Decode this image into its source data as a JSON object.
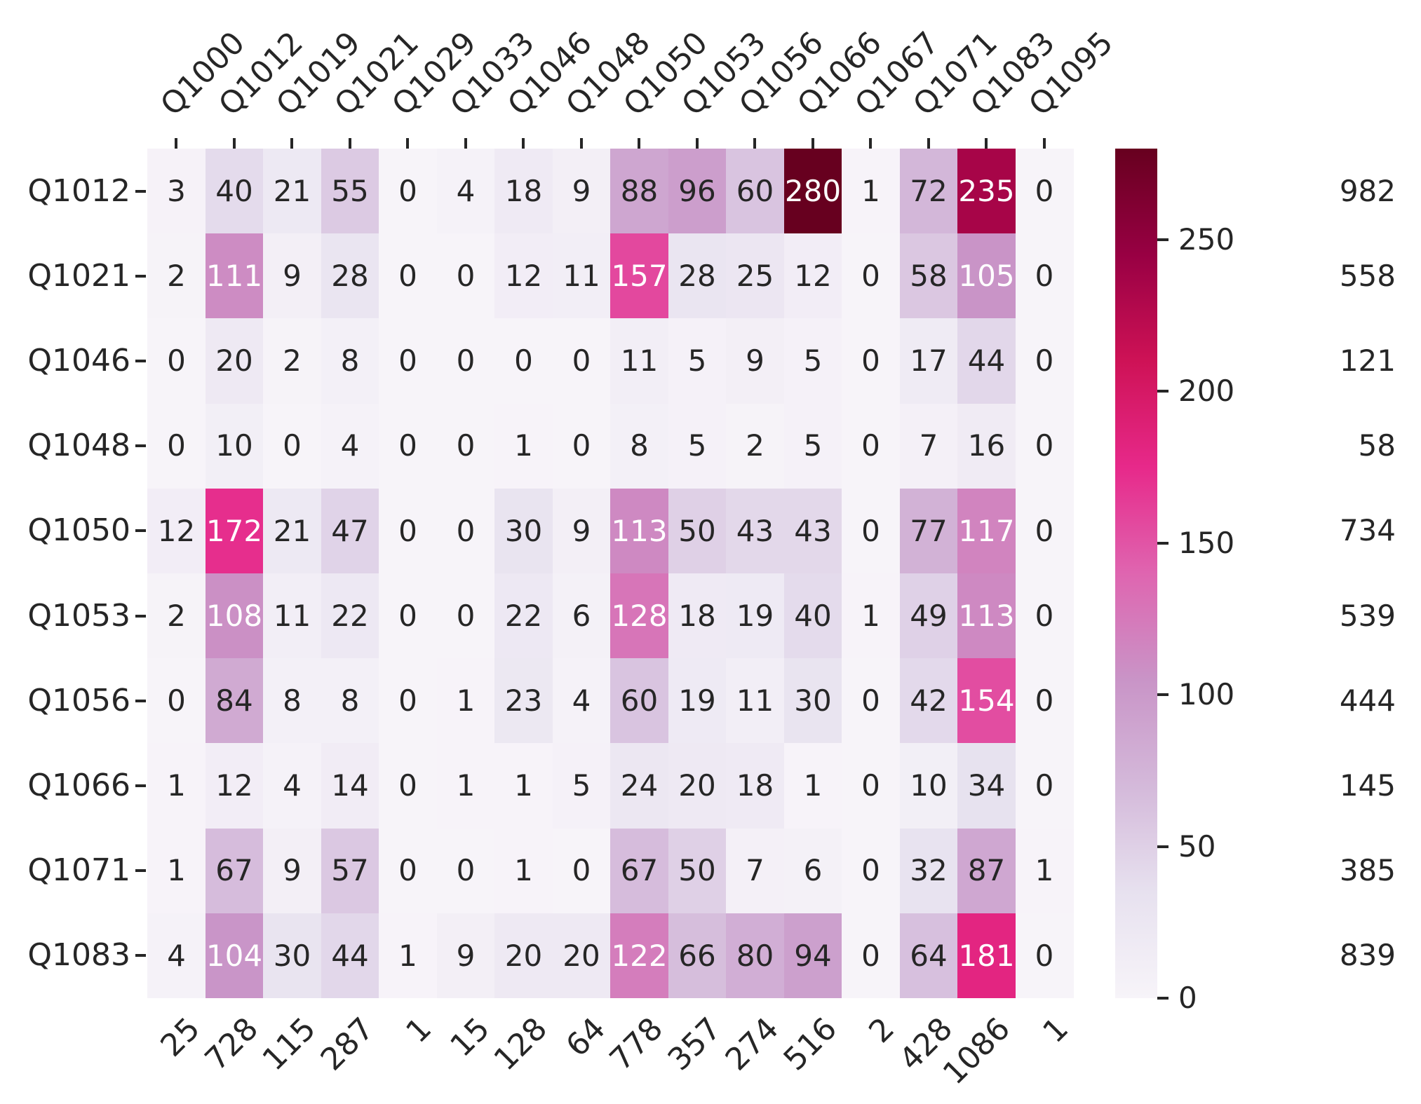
{
  "chart_data": {
    "type": "heatmap",
    "title": "",
    "xlabel": "",
    "ylabel": "",
    "x_labels": [
      "Q1000",
      "Q1012",
      "Q1019",
      "Q1021",
      "Q1029",
      "Q1033",
      "Q1046",
      "Q1048",
      "Q1050",
      "Q1053",
      "Q1056",
      "Q1066",
      "Q1067",
      "Q1071",
      "Q1083",
      "Q1095"
    ],
    "y_labels": [
      "Q1012",
      "Q1021",
      "Q1046",
      "Q1048",
      "Q1050",
      "Q1053",
      "Q1056",
      "Q1066",
      "Q1071",
      "Q1083"
    ],
    "values": [
      [
        3,
        40,
        21,
        55,
        0,
        4,
        18,
        9,
        88,
        96,
        60,
        280,
        1,
        72,
        235,
        0
      ],
      [
        2,
        111,
        9,
        28,
        0,
        0,
        12,
        11,
        157,
        28,
        25,
        12,
        0,
        58,
        105,
        0
      ],
      [
        0,
        20,
        2,
        8,
        0,
        0,
        0,
        0,
        11,
        5,
        9,
        5,
        0,
        17,
        44,
        0
      ],
      [
        0,
        10,
        0,
        4,
        0,
        0,
        1,
        0,
        8,
        5,
        2,
        5,
        0,
        7,
        16,
        0
      ],
      [
        12,
        172,
        21,
        47,
        0,
        0,
        30,
        9,
        113,
        50,
        43,
        43,
        0,
        77,
        117,
        0
      ],
      [
        2,
        108,
        11,
        22,
        0,
        0,
        22,
        6,
        128,
        18,
        19,
        40,
        1,
        49,
        113,
        0
      ],
      [
        0,
        84,
        8,
        8,
        0,
        1,
        23,
        4,
        60,
        19,
        11,
        30,
        0,
        42,
        154,
        0
      ],
      [
        1,
        12,
        4,
        14,
        0,
        1,
        1,
        5,
        24,
        20,
        18,
        1,
        0,
        10,
        34,
        0
      ],
      [
        1,
        67,
        9,
        57,
        0,
        0,
        1,
        0,
        67,
        50,
        7,
        6,
        0,
        32,
        87,
        1
      ],
      [
        4,
        104,
        30,
        44,
        1,
        9,
        20,
        20,
        122,
        66,
        80,
        94,
        0,
        64,
        181,
        0
      ]
    ],
    "row_totals": [
      982,
      558,
      121,
      58,
      734,
      539,
      444,
      145,
      385,
      839
    ],
    "col_totals": [
      25,
      728,
      115,
      287,
      1,
      15,
      128,
      64,
      778,
      357,
      274,
      516,
      2,
      428,
      1086,
      1
    ],
    "vmin": 0,
    "vmax": 280,
    "colorbar_ticks": [
      0,
      50,
      100,
      150,
      200,
      250
    ],
    "legend_position": "right",
    "grid_lines": false,
    "colormap": {
      "name": "PuRd",
      "positions": [
        0,
        0.125,
        0.25,
        0.375,
        0.5,
        0.625,
        0.75,
        0.875,
        1
      ],
      "colors": [
        "#f7f4f9",
        "#e7e1ef",
        "#d4b9da",
        "#c994c7",
        "#df65b0",
        "#e7298a",
        "#ce1256",
        "#980043",
        "#67001f"
      ]
    },
    "annotation_dark_color": "#262626",
    "annotation_light_color": "#ffffff"
  }
}
